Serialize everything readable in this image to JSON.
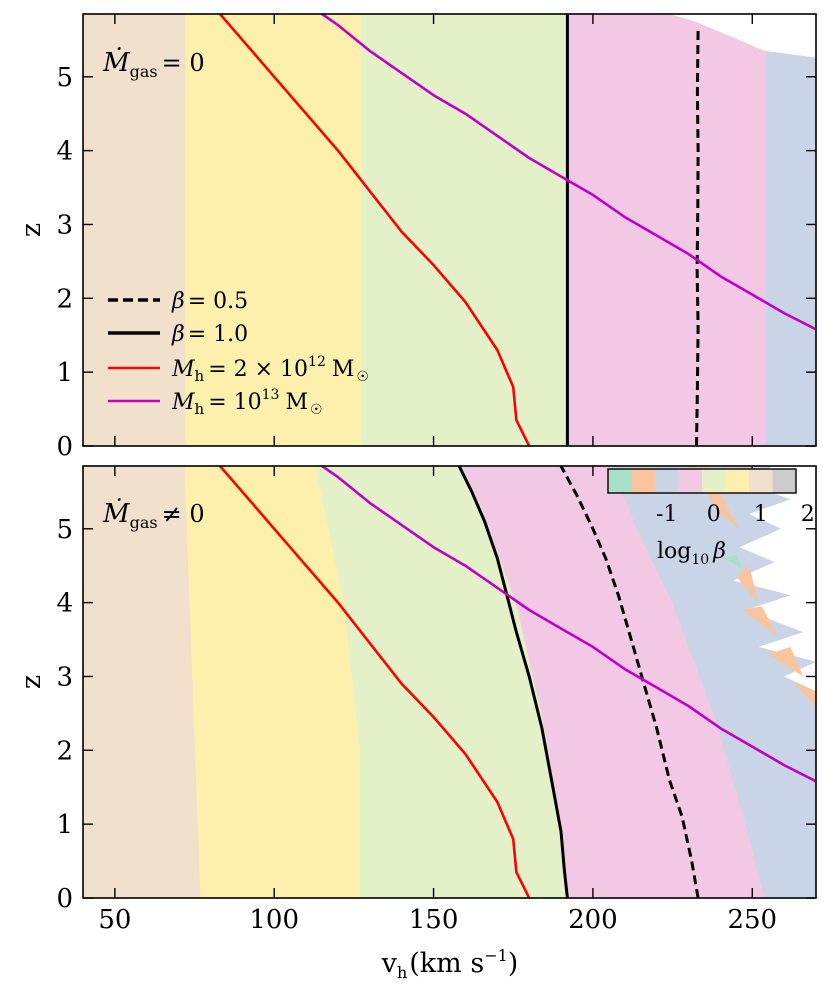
{
  "chart_data": [
    {
      "type": "line",
      "panel": "top",
      "annotation": {
        "symbol": "Ṁ",
        "subscript": "gas",
        "relation": "= 0"
      },
      "xlim": [
        40,
        270
      ],
      "ylim": [
        0,
        5.85
      ],
      "x_ticks": [
        50,
        100,
        150,
        200,
        250
      ],
      "y_ticks": [
        0,
        1,
        2,
        3,
        4,
        5
      ],
      "y_tick_labels": [
        "0",
        "1",
        "2",
        "3",
        "4",
        "5"
      ],
      "ylabel": "z",
      "background_bands": [
        {
          "beta_class": "-1",
          "color": "#c9d4e6",
          "x_from": 254,
          "x_to": 270
        },
        {
          "beta_class": "0",
          "color": "#f3c8e4",
          "x_from": 192,
          "x_to": 254
        },
        {
          "beta_class": "1",
          "color": "#e3f0c8",
          "x_from": 127,
          "x_to": 192
        },
        {
          "beta_class": "2",
          "color": "#fdf0ad",
          "x_from": 72,
          "x_to": 127
        },
        {
          "beta_class": "3",
          "color": "#f0e0cc",
          "x_from": 40,
          "x_to": 72
        }
      ],
      "white_region_top_right": {
        "points": [
          [
            224,
            5.85
          ],
          [
            270,
            5.85
          ],
          [
            270,
            5.26
          ],
          [
            254,
            5.35
          ],
          [
            232,
            5.75
          ]
        ]
      },
      "series": [
        {
          "name": "β = 0.5",
          "style": "dashed",
          "color": "#000000",
          "x": [
            232.5,
            232.8,
            233.0,
            232.7,
            232.9,
            233.0,
            232.8,
            233.0
          ],
          "z": [
            0,
            0.8,
            1.6,
            2.4,
            3.2,
            4.0,
            4.8,
            5.65
          ]
        },
        {
          "name": "β = 1.0",
          "style": "solid",
          "color": "#000000",
          "x": [
            192,
            192
          ],
          "z": [
            0,
            5.85
          ]
        },
        {
          "name": "Mh = 2×10^12 M☉",
          "style": "solid",
          "color": "#ff0000",
          "x": [
            180,
            176,
            175,
            170,
            160,
            150,
            140,
            130,
            120,
            110,
            100,
            90,
            83
          ],
          "z": [
            0,
            0.35,
            0.8,
            1.3,
            1.95,
            2.45,
            2.9,
            3.45,
            4.0,
            4.5,
            5.0,
            5.5,
            5.85
          ]
        },
        {
          "name": "Mh = 10^13 M☉",
          "style": "solid",
          "color": "#c000c8",
          "x": [
            270,
            260,
            250,
            240,
            230,
            220,
            210,
            200,
            190,
            180,
            170,
            160,
            150,
            140,
            130,
            120,
            115
          ],
          "z": [
            1.58,
            1.8,
            2.05,
            2.3,
            2.6,
            2.85,
            3.1,
            3.4,
            3.65,
            3.9,
            4.2,
            4.5,
            4.75,
            5.05,
            5.35,
            5.7,
            5.85
          ]
        }
      ]
    },
    {
      "type": "line",
      "panel": "bottom",
      "annotation": {
        "symbol": "Ṁ",
        "subscript": "gas",
        "relation": "≠ 0"
      },
      "xlim": [
        40,
        270
      ],
      "ylim": [
        0,
        5.85
      ],
      "x_ticks": [
        50,
        100,
        150,
        200,
        250
      ],
      "x_tick_labels": [
        "50",
        "100",
        "150",
        "200",
        "250"
      ],
      "y_ticks": [
        0,
        1,
        2,
        3,
        4,
        5
      ],
      "y_tick_labels": [
        "0",
        "1",
        "2",
        "3",
        "4",
        "5"
      ],
      "ylabel": "z",
      "xlabel": "v_h (km s^-1)",
      "background_bands": [
        {
          "beta_class": "3",
          "color": "#f0e0cc",
          "left": [
            [
              40,
              0
            ],
            [
              40,
              5.85
            ]
          ],
          "right": [
            [
              77,
              0
            ],
            [
              72,
              5.85
            ]
          ]
        },
        {
          "beta_class": "2",
          "color": "#fdf0ad",
          "left": [
            [
              77,
              0
            ],
            [
              72,
              5.85
            ]
          ],
          "right": [
            [
              127,
              0
            ],
            [
              127,
              2.0
            ],
            [
              122,
              4.0
            ],
            [
              113,
              5.85
            ]
          ]
        },
        {
          "beta_class": "1",
          "color": "#e3f0c8",
          "left": [
            [
              127,
              0
            ],
            [
              127,
              2.0
            ],
            [
              122,
              4.0
            ],
            [
              113,
              5.85
            ]
          ],
          "right": [
            [
              192,
              0
            ],
            [
              190,
              1.0
            ],
            [
              184,
              2.5
            ],
            [
              176,
              4.0
            ],
            [
              165,
              5.3
            ],
            [
              158,
              5.85
            ]
          ]
        },
        {
          "beta_class": "0",
          "color": "#f3c8e4",
          "left": [
            [
              192,
              0
            ],
            [
              190,
              1.0
            ],
            [
              184,
              2.5
            ],
            [
              176,
              4.0
            ],
            [
              165,
              5.3
            ],
            [
              158,
              5.85
            ]
          ],
          "right": [
            [
              254,
              0
            ],
            [
              248,
              1.0
            ],
            [
              238,
              2.5
            ],
            [
              225,
              4.0
            ],
            [
              214,
              5.0
            ],
            [
              206,
              5.85
            ]
          ]
        },
        {
          "beta_class": "-1",
          "color": "#c9d4e6",
          "left": [
            [
              254,
              0
            ],
            [
              248,
              1.0
            ],
            [
              238,
              2.5
            ],
            [
              225,
              4.0
            ],
            [
              214,
              5.0
            ],
            [
              206,
              5.85
            ]
          ],
          "right": [
            [
              270,
              0
            ],
            [
              270,
              5.85
            ]
          ]
        }
      ],
      "colorbar": {
        "label": "log10 β",
        "tick_labels": [
          "-1",
          "0",
          "1",
          "2"
        ],
        "colors": [
          "#a8dfc8",
          "#fac49e",
          "#c9d4e6",
          "#f3c8e4",
          "#e3f0c8",
          "#fdf0ad",
          "#f0e0cc",
          "#cccccc"
        ]
      },
      "series": [
        {
          "name": "β = 0.5",
          "style": "dashed",
          "color": "#000000",
          "x": [
            233,
            231,
            228,
            224,
            220,
            216,
            212,
            208,
            204,
            200,
            195,
            190
          ],
          "z": [
            0,
            0.5,
            1.1,
            1.6,
            2.3,
            2.9,
            3.5,
            4.1,
            4.6,
            5.0,
            5.45,
            5.85
          ]
        },
        {
          "name": "β = 1.0",
          "style": "solid",
          "color": "#000000",
          "x": [
            192,
            191,
            190,
            187,
            184,
            180,
            176,
            173,
            170,
            166,
            162,
            158
          ],
          "z": [
            0,
            0.4,
            0.9,
            1.6,
            2.3,
            3.0,
            3.6,
            4.1,
            4.6,
            5.1,
            5.5,
            5.85
          ]
        },
        {
          "name": "Mh = 2×10^12 M☉",
          "style": "solid",
          "color": "#ff0000",
          "x": [
            180,
            176,
            175,
            170,
            160,
            150,
            140,
            130,
            120,
            110,
            100,
            90,
            83
          ],
          "z": [
            0,
            0.35,
            0.8,
            1.3,
            1.95,
            2.45,
            2.9,
            3.45,
            4.0,
            4.5,
            5.0,
            5.5,
            5.85
          ]
        },
        {
          "name": "Mh = 10^13 M☉",
          "style": "solid",
          "color": "#c000c8",
          "x": [
            270,
            260,
            250,
            240,
            230,
            220,
            210,
            200,
            190,
            180,
            170,
            160,
            150,
            140,
            130,
            120,
            115
          ],
          "z": [
            1.58,
            1.8,
            2.05,
            2.3,
            2.6,
            2.85,
            3.1,
            3.4,
            3.65,
            3.9,
            4.2,
            4.5,
            4.75,
            5.05,
            5.35,
            5.7,
            5.85
          ]
        }
      ]
    }
  ],
  "legend": {
    "items": [
      {
        "var": "β",
        "rel": "= 0.5",
        "style": "dashed",
        "color": "#000000"
      },
      {
        "var": "β",
        "rel": "= 1.0",
        "style": "solid",
        "color": "#000000"
      },
      {
        "var": "M",
        "sub": "h",
        "rel": "= 2 × 10",
        "sup": "12",
        "unit": "M",
        "unit_sub": "☉",
        "style": "solid",
        "color": "#ff0000"
      },
      {
        "var": "M",
        "sub": "h",
        "rel": "= 10",
        "sup": "13",
        "unit": "M",
        "unit_sub": "☉",
        "style": "solid",
        "color": "#c000c8"
      }
    ]
  },
  "axis_labels": {
    "y": "z",
    "x_main": "v",
    "x_sub": "h",
    "x_units": "(km s",
    "x_units_sup": "−1",
    "x_units_close": ")"
  },
  "colorbar_text": {
    "log": "log",
    "log_sub": "10",
    "beta": "β"
  }
}
